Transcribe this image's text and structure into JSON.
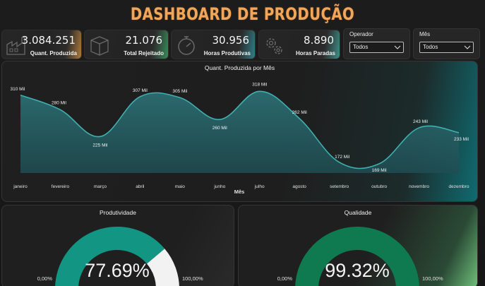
{
  "header": {
    "title": "DASHBOARD DE PRODUÇÃO"
  },
  "kpis": [
    {
      "value": "3.084.251",
      "label": "Quant. Produzida",
      "icon": "factory-icon",
      "glow": "#b07a3c"
    },
    {
      "value": "21.076",
      "label": "Total Rejeitado",
      "icon": "box-icon",
      "glow": "#3a8a5a"
    },
    {
      "value": "30.956",
      "label": "Horas Produtivas",
      "icon": "stopwatch-icon",
      "glow": "#2f7f88"
    },
    {
      "value": "8.890",
      "label": "Horas Paradas",
      "icon": "gears-icon",
      "glow": "#3f8f88"
    }
  ],
  "filters": [
    {
      "label": "Operador",
      "value": "Todos"
    },
    {
      "label": "Mês",
      "value": "Todos"
    }
  ],
  "chart_data": {
    "type": "area",
    "title": "Quant. Produzida por Mês",
    "xlabel": "Mês",
    "ylabel": "",
    "categories": [
      "janeiro",
      "fevereiro",
      "março",
      "abril",
      "maio",
      "junho",
      "julho",
      "agosto",
      "setembro",
      "outubro",
      "novembro",
      "dezembro"
    ],
    "values": [
      310,
      280,
      225,
      307,
      305,
      260,
      318,
      262,
      172,
      169,
      243,
      233
    ],
    "data_labels": [
      "310 Mil",
      "280 Mil",
      "225 Mil",
      "307 Mil",
      "305 Mil",
      "260 Mil",
      "318 Mil",
      "262 Mil",
      "172 Mil",
      "169 Mil",
      "243 Mil",
      "233 Mil"
    ],
    "ylim": [
      150,
      330
    ],
    "grid": false,
    "colors": {
      "line": "#3fb0b0",
      "fill": "#2c6e72"
    }
  },
  "gauges": [
    {
      "title": "Produtividade",
      "value_label": "77.69%",
      "min_label": "0,00%",
      "max_label": "100,00%",
      "fraction": 0.7769,
      "color": "#129683",
      "rest_color": "#f2f2f2"
    },
    {
      "title": "Qualidade",
      "value_label": "99.32%",
      "min_label": "0,00%",
      "max_label": "100,00%",
      "fraction": 0.9932,
      "color": "#0f7a4f",
      "rest_color": "#f2f2f2"
    }
  ]
}
